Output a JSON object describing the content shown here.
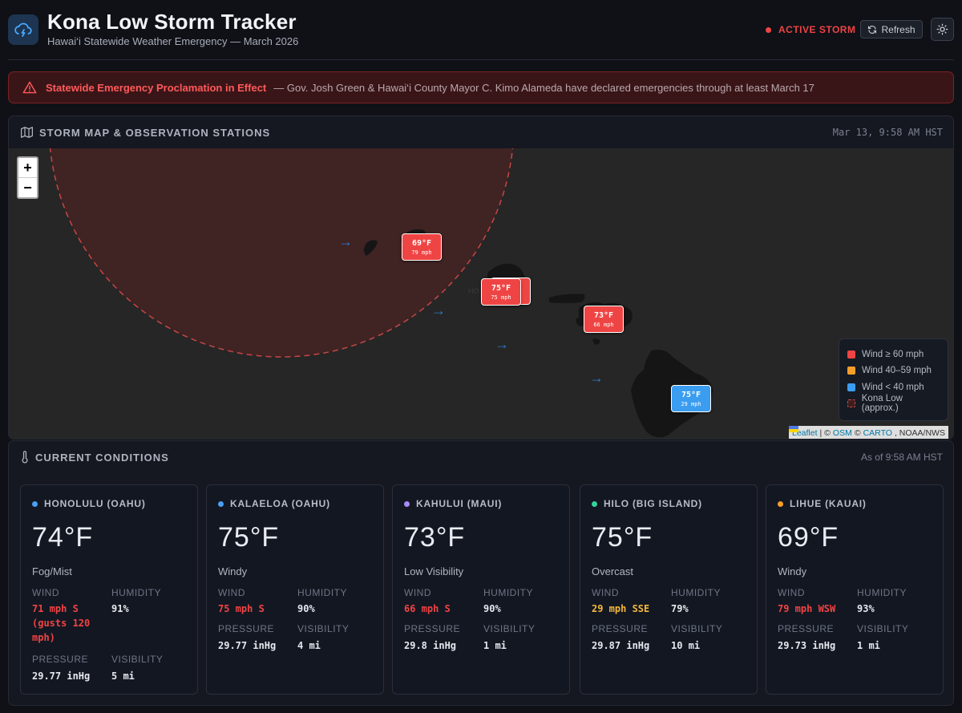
{
  "header": {
    "title": "Kona Low Storm Tracker",
    "subtitle": "Hawai‘i Statewide Weather Emergency — March 2026",
    "status_badge": "ACTIVE STORM",
    "refresh_label": "Refresh",
    "icons": {
      "app": "storm-cloud-icon",
      "refresh": "refresh-icon",
      "theme": "sun-icon"
    }
  },
  "banner": {
    "title": "Statewide Emergency Proclamation in Effect",
    "text": "— Gov. Josh Green & Hawai‘i County Mayor C. Kimo Alameda have declared emergencies through at least March 17",
    "icon": "warning-icon"
  },
  "map_panel": {
    "title": "STORM MAP & OBSERVATION STATIONS",
    "timestamp": "Mar 13, 9:58 AM HST",
    "zoom_in": "+",
    "zoom_out": "−",
    "markers": [
      {
        "id": "lihue",
        "temp": "69°F",
        "wind": "79 mph",
        "color": "#ef4444"
      },
      {
        "id": "kalaeloa",
        "temp": "75°F",
        "wind": "75 mph",
        "color": "#ef4444"
      },
      {
        "id": "kahului",
        "temp": "73°F",
        "wind": "66 mph",
        "color": "#ef4444"
      },
      {
        "id": "hilo",
        "temp": "75°F",
        "wind": "29 mph",
        "color": "#3b9df0"
      }
    ],
    "legend": [
      {
        "label": "Wind ≥ 60 mph",
        "color": "#ef4444"
      },
      {
        "label": "Wind 40–59 mph",
        "color": "#f59e2b"
      },
      {
        "label": "Wind < 40 mph",
        "color": "#3b9df0"
      },
      {
        "label": "Kona Low (approx.)",
        "color": "#d04b4b"
      }
    ],
    "attribution": {
      "leaflet": "Leaflet",
      "sep1": "| ©",
      "osm": "OSM",
      "sep2": "©",
      "carto": "CARTO",
      "tail": ", NOAA/NWS"
    }
  },
  "conditions_panel": {
    "title": "CURRENT CONDITIONS",
    "as_of": "As of 9:58 AM HST",
    "labels": {
      "wind": "WIND",
      "humidity": "HUMIDITY",
      "pressure": "PRESSURE",
      "visibility": "VISIBILITY"
    },
    "stations": [
      {
        "name": "HONOLULU (OAHU)",
        "dot": "#4a9ff5",
        "temp": "74°F",
        "condition": "Fog/Mist",
        "wind": "71 mph S (gusts 120 mph)",
        "wind_color": "#ef4444",
        "humidity": "91%",
        "pressure": "29.77 inHg",
        "visibility": "5 mi"
      },
      {
        "name": "KALAELOA (OAHU)",
        "dot": "#4a9ff5",
        "temp": "75°F",
        "condition": "Windy",
        "wind": "75 mph S",
        "wind_color": "#ef4444",
        "humidity": "90%",
        "pressure": "29.77 inHg",
        "visibility": "4 mi"
      },
      {
        "name": "KAHULUI (MAUI)",
        "dot": "#a78bfa",
        "temp": "73°F",
        "condition": "Low Visibility",
        "wind": "66 mph S",
        "wind_color": "#ef4444",
        "humidity": "90%",
        "pressure": "29.8 inHg",
        "visibility": "1 mi"
      },
      {
        "name": "HILO (BIG ISLAND)",
        "dot": "#34d399",
        "temp": "75°F",
        "condition": "Overcast",
        "wind": "29 mph SSE",
        "wind_color": "#f5b83b",
        "humidity": "79%",
        "pressure": "29.87 inHg",
        "visibility": "10 mi"
      },
      {
        "name": "LIHUE (KAUAI)",
        "dot": "#f59e2b",
        "temp": "69°F",
        "condition": "Windy",
        "wind": "79 mph WSW",
        "wind_color": "#ef4444",
        "humidity": "93%",
        "pressure": "29.73 inHg",
        "visibility": "1 mi"
      }
    ]
  }
}
